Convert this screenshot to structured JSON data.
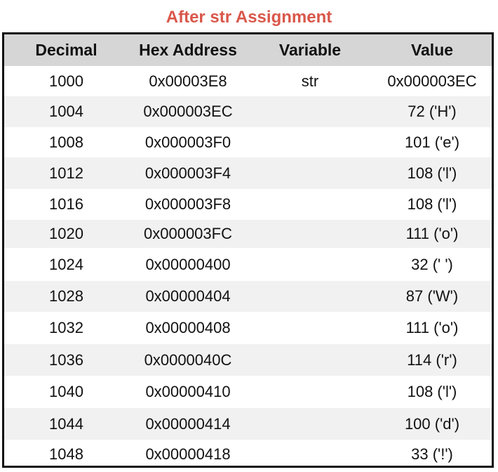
{
  "title": "After str Assignment",
  "colors": {
    "title": "#d9574a",
    "header_bg": "#d6d6d6",
    "stripe_bg": "#f1f1f1",
    "border": "#111111"
  },
  "table": {
    "columns": [
      "Decimal",
      "Hex Address",
      "Variable",
      "Value"
    ],
    "rows": [
      {
        "decimal": "1000",
        "hex": "0x00003E8",
        "variable": "str",
        "value": "0x000003EC"
      },
      {
        "decimal": "1004",
        "hex": "0x000003EC",
        "variable": "",
        "value": "72 ('H')"
      },
      {
        "decimal": "1008",
        "hex": "0x000003F0",
        "variable": "",
        "value": "101 ('e')"
      },
      {
        "decimal": "1012",
        "hex": "0x000003F4",
        "variable": "",
        "value": "108 ('l')"
      },
      {
        "decimal": "1016",
        "hex": "0x000003F8",
        "variable": "",
        "value": "108 ('l')"
      },
      {
        "decimal": "1020",
        "hex": "0x000003FC",
        "variable": "",
        "value": "111 ('o')"
      },
      {
        "decimal": "1024",
        "hex": "0x00000400",
        "variable": "",
        "value": "32 (' ')"
      },
      {
        "decimal": "1028",
        "hex": "0x00000404",
        "variable": "",
        "value": "87 ('W')"
      },
      {
        "decimal": "1032",
        "hex": "0x00000408",
        "variable": "",
        "value": "111 ('o')"
      },
      {
        "decimal": "1036",
        "hex": "0x0000040C",
        "variable": "",
        "value": "114 ('r')"
      },
      {
        "decimal": "1040",
        "hex": "0x00000410",
        "variable": "",
        "value": "108 ('l')"
      },
      {
        "decimal": "1044",
        "hex": "0x00000414",
        "variable": "",
        "value": "100 ('d')"
      },
      {
        "decimal": "1048",
        "hex": "0x00000418",
        "variable": "",
        "value": "33 ('!')"
      }
    ]
  }
}
